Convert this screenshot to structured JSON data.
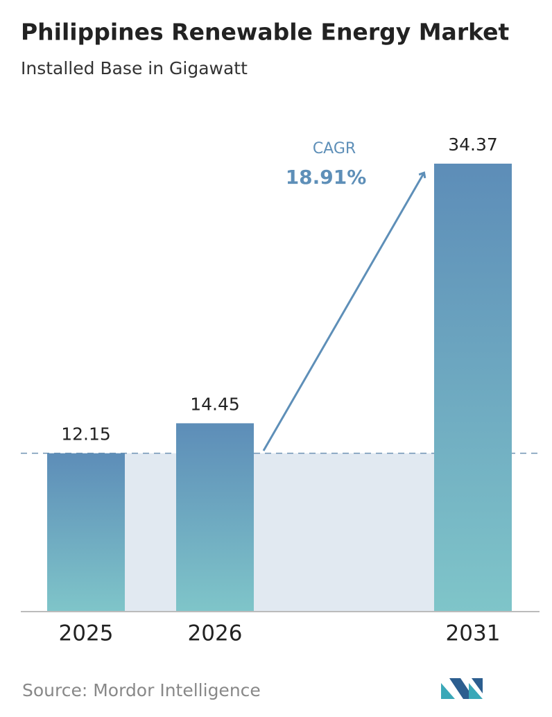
{
  "chart_data": {
    "type": "bar",
    "title": "Philippines Renewable Energy Market",
    "subtitle": "Installed Base in Gigawatt",
    "categories": [
      "2025",
      "2026",
      "2031"
    ],
    "values": [
      12.15,
      14.45,
      34.37
    ],
    "gradient": [
      "#5d8db8",
      "#7fc5c9"
    ],
    "annotation": {
      "label": "CAGR",
      "text": "18.91%",
      "color": "#5e8fb8"
    },
    "source": "Source:  Mordor Intelligence"
  }
}
